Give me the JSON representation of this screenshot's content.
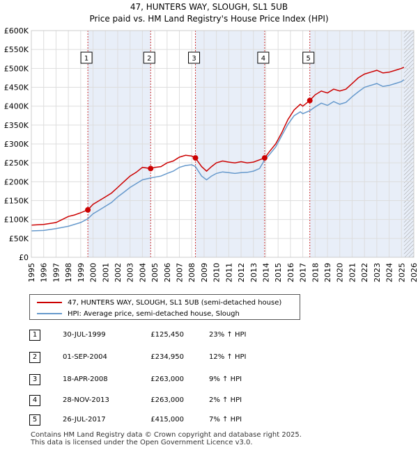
{
  "chart_data": {
    "type": "line",
    "title": "47, HUNTERS WAY, SLOUGH, SL1 5UB",
    "subtitle": "Price paid vs. HM Land Registry's House Price Index (HPI)",
    "xlim": [
      1995,
      2026
    ],
    "ylim": [
      0,
      600000
    ],
    "x_ticks": [
      "1995",
      "1996",
      "1997",
      "1998",
      "1999",
      "2000",
      "2001",
      "2002",
      "2003",
      "2004",
      "2005",
      "2006",
      "2007",
      "2008",
      "2009",
      "2010",
      "2011",
      "2012",
      "2013",
      "2014",
      "2015",
      "2016",
      "2017",
      "2018",
      "2019",
      "2020",
      "2021",
      "2022",
      "2023",
      "2024",
      "2025",
      "2026"
    ],
    "y_ticks": [
      {
        "value": 0,
        "label": "£0"
      },
      {
        "value": 50000,
        "label": "£50K"
      },
      {
        "value": 100000,
        "label": "£100K"
      },
      {
        "value": 150000,
        "label": "£150K"
      },
      {
        "value": 200000,
        "label": "£200K"
      },
      {
        "value": 250000,
        "label": "£250K"
      },
      {
        "value": 300000,
        "label": "£300K"
      },
      {
        "value": 350000,
        "label": "£350K"
      },
      {
        "value": 400000,
        "label": "£400K"
      },
      {
        "value": 450000,
        "label": "£450K"
      },
      {
        "value": 500000,
        "label": "£500K"
      },
      {
        "value": 550000,
        "label": "£550K"
      },
      {
        "value": 600000,
        "label": "£600K"
      }
    ],
    "colors": {
      "price": "#cc0000",
      "hpi": "#6699cc",
      "shade": "#e8eef8",
      "grid": "#dddddd",
      "marker_line": "#cc3333",
      "future_hatch": "#999999"
    },
    "series": [
      {
        "name": "47, HUNTERS WAY, SLOUGH, SL1 5UB (semi-detached house)",
        "color": "#cc0000",
        "x": [
          1995.0,
          1996.0,
          1997.0,
          1997.5,
          1998.0,
          1998.5,
          1999.0,
          1999.58,
          2000.0,
          2000.5,
          2001.0,
          2001.5,
          2002.0,
          2002.5,
          2003.0,
          2003.5,
          2004.0,
          2004.67,
          2005.0,
          2005.5,
          2006.0,
          2006.5,
          2007.0,
          2007.5,
          2008.0,
          2008.3,
          2008.8,
          2009.2,
          2009.6,
          2010.0,
          2010.5,
          2011.0,
          2011.5,
          2012.0,
          2012.5,
          2013.0,
          2013.5,
          2013.91,
          2014.3,
          2014.8,
          2015.3,
          2015.8,
          2016.3,
          2016.8,
          2017.0,
          2017.57,
          2018.0,
          2018.5,
          2019.0,
          2019.5,
          2020.0,
          2020.5,
          2021.0,
          2021.5,
          2022.0,
          2022.5,
          2023.0,
          2023.5,
          2024.0,
          2024.5,
          2025.0,
          2025.2
        ],
        "y": [
          85000,
          87000,
          92000,
          100000,
          108000,
          112000,
          118000,
          125450,
          140000,
          150000,
          160000,
          170000,
          185000,
          200000,
          215000,
          225000,
          238000,
          234950,
          238000,
          240000,
          250000,
          255000,
          265000,
          270000,
          268000,
          263000,
          240000,
          228000,
          240000,
          250000,
          255000,
          252000,
          250000,
          253000,
          250000,
          252000,
          258000,
          263000,
          280000,
          300000,
          330000,
          365000,
          390000,
          405000,
          400000,
          415000,
          430000,
          440000,
          435000,
          445000,
          440000,
          445000,
          460000,
          475000,
          485000,
          490000,
          495000,
          488000,
          490000,
          495000,
          500000,
          503000
        ]
      },
      {
        "name": "HPI: Average price, semi-detached house, Slough",
        "color": "#6699cc",
        "x": [
          1995.0,
          1996.0,
          1997.0,
          1998.0,
          1999.0,
          1999.58,
          2000.0,
          2000.5,
          2001.0,
          2001.5,
          2002.0,
          2002.5,
          2003.0,
          2003.5,
          2004.0,
          2004.67,
          2005.0,
          2005.5,
          2006.0,
          2006.5,
          2007.0,
          2007.5,
          2008.0,
          2008.3,
          2008.8,
          2009.2,
          2009.6,
          2010.0,
          2010.5,
          2011.0,
          2011.5,
          2012.0,
          2012.5,
          2013.0,
          2013.5,
          2013.91,
          2014.3,
          2014.8,
          2015.3,
          2015.8,
          2016.3,
          2016.8,
          2017.0,
          2017.57,
          2018.0,
          2018.5,
          2019.0,
          2019.5,
          2020.0,
          2020.5,
          2021.0,
          2021.5,
          2022.0,
          2022.5,
          2023.0,
          2023.5,
          2024.0,
          2024.5,
          2025.0,
          2025.2
        ],
        "y": [
          70000,
          71000,
          76000,
          82000,
          92000,
          102000,
          115000,
          125000,
          135000,
          145000,
          160000,
          172000,
          185000,
          195000,
          205000,
          210000,
          212000,
          215000,
          222000,
          228000,
          238000,
          243000,
          245000,
          240000,
          215000,
          205000,
          215000,
          222000,
          226000,
          224000,
          222000,
          224000,
          225000,
          228000,
          235000,
          258000,
          272000,
          292000,
          322000,
          352000,
          375000,
          385000,
          380000,
          388000,
          398000,
          408000,
          402000,
          412000,
          405000,
          410000,
          425000,
          438000,
          450000,
          455000,
          460000,
          452000,
          455000,
          460000,
          465000,
          470000
        ]
      }
    ],
    "sales": [
      {
        "label": "1",
        "x": 1999.58,
        "y": 125450
      },
      {
        "label": "2",
        "x": 2004.67,
        "y": 234950
      },
      {
        "label": "3",
        "x": 2008.3,
        "y": 263000
      },
      {
        "label": "4",
        "x": 2013.91,
        "y": 263000
      },
      {
        "label": "5",
        "x": 2017.57,
        "y": 415000
      }
    ],
    "shaded_ranges": [
      [
        1999.58,
        2004.67
      ],
      [
        2008.3,
        2013.91
      ],
      [
        2017.57,
        2026.0
      ]
    ],
    "future_start": 2025.2
  },
  "legend": {
    "price_label": "47, HUNTERS WAY, SLOUGH, SL1 5UB (semi-detached house)",
    "hpi_label": "HPI: Average price, semi-detached house, Slough"
  },
  "sales_table": [
    {
      "num": "1",
      "date": "30-JUL-1999",
      "price": "£125,450",
      "hpi": "23% ↑ HPI"
    },
    {
      "num": "2",
      "date": "01-SEP-2004",
      "price": "£234,950",
      "hpi": "12% ↑ HPI"
    },
    {
      "num": "3",
      "date": "18-APR-2008",
      "price": "£263,000",
      "hpi": "9% ↑ HPI"
    },
    {
      "num": "4",
      "date": "28-NOV-2013",
      "price": "£263,000",
      "hpi": "2% ↑ HPI"
    },
    {
      "num": "5",
      "date": "26-JUL-2017",
      "price": "£415,000",
      "hpi": "7% ↑ HPI"
    }
  ],
  "footer": {
    "line1": "Contains HM Land Registry data © Crown copyright and database right 2025.",
    "line2": "This data is licensed under the Open Government Licence v3.0."
  }
}
